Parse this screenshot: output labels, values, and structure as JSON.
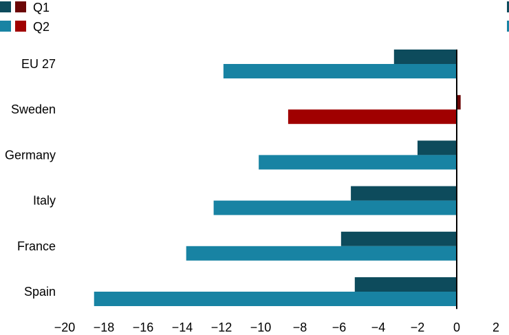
{
  "chart_data": {
    "type": "bar",
    "orientation": "horizontal",
    "categories": [
      "EU 27",
      "Sweden",
      "Germany",
      "Italy",
      "France",
      "Spain"
    ],
    "series": [
      {
        "name": "Q1",
        "values": [
          -3.2,
          0.2,
          -2.0,
          -5.4,
          -5.9,
          -5.2
        ]
      },
      {
        "name": "Q2",
        "values": [
          -11.9,
          -8.6,
          -10.1,
          -12.4,
          -13.8,
          -18.5
        ]
      }
    ],
    "highlight_category": "Sweden",
    "colors": {
      "q1_default": "#0d4b5c",
      "q2_default": "#1883a3",
      "q1_highlight": "#6b0606",
      "q2_highlight": "#a00000"
    },
    "xlim": [
      -20,
      2
    ],
    "xticks": [
      -20,
      -18,
      -16,
      -14,
      -12,
      -10,
      -8,
      -6,
      -4,
      -2,
      0,
      2
    ],
    "legend": {
      "placement": "top-left",
      "entries": [
        "Q1",
        "Q2"
      ]
    },
    "grid": false
  }
}
